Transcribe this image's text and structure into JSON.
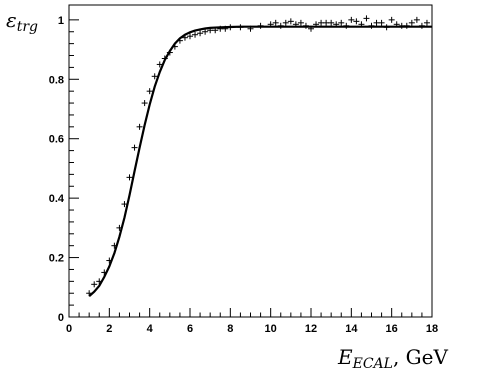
{
  "chart_data": {
    "type": "scatter",
    "title": "",
    "xlabel": {
      "symbol": "E",
      "subscript": "ECAL",
      "unit": ", GeV"
    },
    "ylabel": {
      "symbol": "ε",
      "subscript": "trg"
    },
    "xlim": [
      0,
      18
    ],
    "ylim": [
      0,
      1.05
    ],
    "x_ticks": [
      0,
      2,
      4,
      6,
      8,
      10,
      12,
      14,
      16,
      18
    ],
    "y_ticks": [
      0,
      0.2,
      0.4,
      0.6,
      0.8,
      1
    ],
    "x_tick_labels": [
      "0",
      "2",
      "4",
      "6",
      "8",
      "10",
      "12",
      "14",
      "16",
      "18"
    ],
    "y_tick_labels": [
      "0",
      "0.2",
      "0.4",
      "0.6",
      "0.8",
      "1"
    ],
    "grid": false,
    "legend": "none",
    "series": [
      {
        "kind": "points",
        "x": [
          1.0,
          1.25,
          1.5,
          1.75,
          2.0,
          2.25,
          2.5,
          2.75,
          3.0,
          3.25,
          3.5,
          3.75,
          4.0,
          4.25,
          4.5,
          4.75,
          5.0,
          5.25,
          5.5,
          5.75,
          6.0,
          6.25,
          6.5,
          6.75,
          7.0,
          7.25,
          7.5,
          7.75,
          8.0,
          8.5,
          9.0,
          9.5,
          10.0,
          10.25,
          10.5,
          10.75,
          11.0,
          11.25,
          11.5,
          11.75,
          12.0,
          12.25,
          12.5,
          12.75,
          13.0,
          13.25,
          13.5,
          13.75,
          14.0,
          14.25,
          14.5,
          14.75,
          15.0,
          15.25,
          15.5,
          15.75,
          16.0,
          16.25,
          16.5,
          16.75,
          17.0,
          17.25,
          17.5,
          17.75
        ],
        "y": [
          0.08,
          0.11,
          0.12,
          0.15,
          0.19,
          0.24,
          0.3,
          0.38,
          0.47,
          0.57,
          0.64,
          0.72,
          0.76,
          0.81,
          0.85,
          0.87,
          0.89,
          0.91,
          0.93,
          0.94,
          0.945,
          0.95,
          0.955,
          0.96,
          0.965,
          0.965,
          0.97,
          0.97,
          0.975,
          0.975,
          0.97,
          0.98,
          0.985,
          0.99,
          0.98,
          0.99,
          0.995,
          0.985,
          0.99,
          0.98,
          0.97,
          0.985,
          0.99,
          0.99,
          0.99,
          0.985,
          0.99,
          0.98,
          1.0,
          0.995,
          0.985,
          1.005,
          0.98,
          0.99,
          0.99,
          0.975,
          1.0,
          0.985,
          0.98,
          0.98,
          0.99,
          1.0,
          0.98,
          0.99
        ]
      },
      {
        "kind": "curve",
        "x": [
          1.0,
          1.25,
          1.5,
          1.75,
          2.0,
          2.25,
          2.5,
          2.75,
          3.0,
          3.25,
          3.5,
          3.75,
          4.0,
          4.25,
          4.5,
          4.75,
          5.0,
          5.25,
          5.5,
          5.75,
          6.0,
          6.25,
          6.5,
          6.75,
          7.0,
          7.5,
          8.0,
          8.5,
          9.0,
          10.0,
          12.0,
          14.0,
          16.0,
          18.0
        ],
        "y": [
          0.07,
          0.085,
          0.105,
          0.135,
          0.17,
          0.215,
          0.27,
          0.335,
          0.41,
          0.49,
          0.57,
          0.645,
          0.715,
          0.775,
          0.825,
          0.865,
          0.895,
          0.92,
          0.938,
          0.95,
          0.958,
          0.964,
          0.968,
          0.971,
          0.973,
          0.975,
          0.976,
          0.977,
          0.977,
          0.977,
          0.977,
          0.977,
          0.977,
          0.977
        ]
      }
    ]
  }
}
